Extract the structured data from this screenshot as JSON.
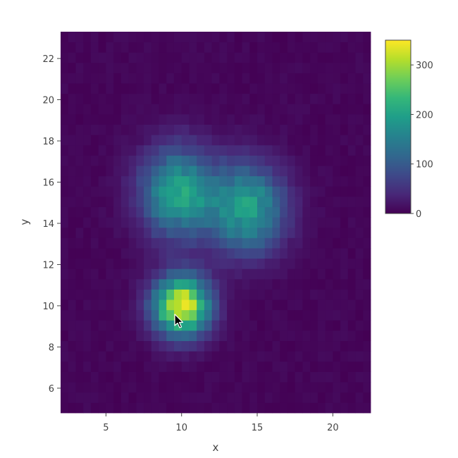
{
  "chart_data": {
    "type": "heatmap",
    "title": "",
    "xlabel": "x",
    "ylabel": "y",
    "xlim": [
      2,
      22.5
    ],
    "ylim": [
      4.8,
      23.3
    ],
    "x_ticks": [
      5,
      10,
      15,
      20
    ],
    "y_ticks": [
      6,
      8,
      10,
      12,
      14,
      16,
      18,
      20,
      22
    ],
    "colorscale": "viridis",
    "colorbar": {
      "min": 0,
      "max": 350,
      "ticks": [
        0,
        100,
        200,
        300
      ]
    },
    "bin_size": {
      "x": 0.5,
      "y": 0.5
    },
    "clusters": [
      {
        "center": [
          10.0,
          10.0
        ],
        "peak": 340,
        "spread": [
          1.3,
          1.0
        ]
      },
      {
        "center": [
          9.8,
          15.5
        ],
        "peak": 200,
        "spread": [
          1.7,
          1.5
        ]
      },
      {
        "center": [
          14.4,
          14.7
        ],
        "peak": 190,
        "spread": [
          1.7,
          1.5
        ]
      }
    ],
    "background_level": 10,
    "colors": {
      "viridis_0": "#440154",
      "viridis_mid": "#21918c",
      "viridis_max": "#fde725"
    }
  },
  "cursor": {
    "icon": "arrow-cursor-icon"
  }
}
